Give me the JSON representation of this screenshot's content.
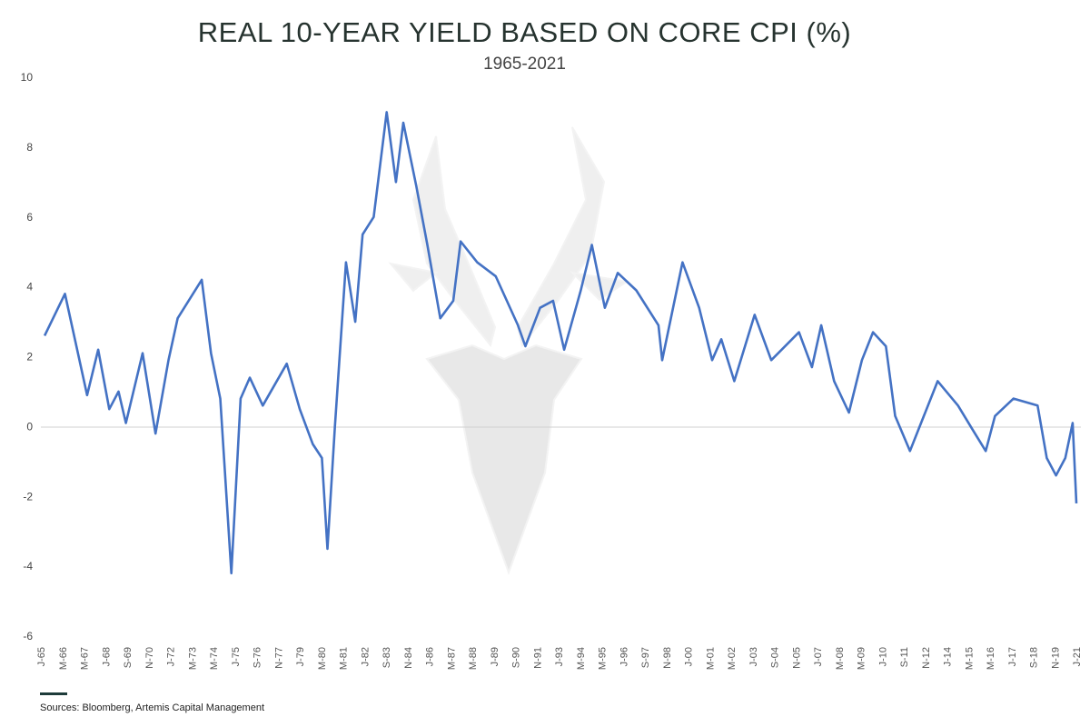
{
  "chart_data": {
    "type": "line",
    "title": "REAL 10-YEAR YIELD BASED ON CORE CPI (%)",
    "subtitle": "1965-2021",
    "xlabel": "",
    "ylabel": "",
    "ylim": [
      -6,
      10
    ],
    "xlim": [
      1965.0,
      2021.0
    ],
    "yticks": [
      "10",
      "8",
      "6",
      "4",
      "2",
      "0",
      "-2",
      "-4",
      "-6"
    ],
    "xticks": [
      "J-65",
      "M-66",
      "M-67",
      "J-68",
      "S-69",
      "N-70",
      "J-72",
      "M-73",
      "M-74",
      "J-75",
      "S-76",
      "N-77",
      "J-79",
      "M-80",
      "M-81",
      "J-82",
      "S-83",
      "N-84",
      "J-86",
      "M-87",
      "M-88",
      "J-89",
      "S-90",
      "N-91",
      "J-93",
      "M-94",
      "M-95",
      "J-96",
      "S-97",
      "N-98",
      "J-00",
      "M-01",
      "M-02",
      "J-03",
      "S-04",
      "N-05",
      "J-07",
      "M-08",
      "M-09",
      "J-10",
      "S-11",
      "N-12",
      "J-14",
      "M-15",
      "M-16",
      "J-17",
      "S-18",
      "N-19",
      "J-21"
    ],
    "grid": false,
    "series": [
      {
        "name": "Real 10-Year Yield",
        "color": "#4472c4",
        "x": [
          1965.2,
          1966.3,
          1967.5,
          1968.1,
          1968.7,
          1969.2,
          1969.6,
          1970.5,
          1971.2,
          1971.9,
          1972.4,
          1973.7,
          1974.2,
          1974.7,
          1975.3,
          1975.8,
          1976.3,
          1977.0,
          1978.3,
          1979.0,
          1979.7,
          1980.2,
          1980.5,
          1980.9,
          1981.5,
          1982.0,
          1982.4,
          1983.0,
          1983.7,
          1984.2,
          1984.6,
          1985.3,
          1985.9,
          1986.6,
          1987.3,
          1987.7,
          1988.6,
          1989.6,
          1990.8,
          1991.2,
          1992.0,
          1992.7,
          1993.3,
          1994.2,
          1994.8,
          1995.5,
          1996.2,
          1997.2,
          1998.4,
          1998.6,
          1999.7,
          2000.6,
          2001.3,
          2001.8,
          2002.5,
          2003.6,
          2004.5,
          2006.0,
          2006.7,
          2007.2,
          2007.9,
          2008.7,
          2009.4,
          2010.0,
          2010.7,
          2011.2,
          2012.0,
          2012.6,
          2013.5,
          2014.6,
          2015.4,
          2016.1,
          2016.6,
          2017.6,
          2018.9,
          2019.4,
          2019.9,
          2020.4,
          2020.8,
          2021.0
        ],
        "values": [
          2.6,
          3.8,
          0.9,
          2.2,
          0.5,
          1.0,
          0.1,
          2.1,
          -0.2,
          1.9,
          3.1,
          4.2,
          2.1,
          0.8,
          -4.2,
          0.8,
          1.4,
          0.6,
          1.8,
          0.5,
          -0.5,
          -0.9,
          -3.5,
          0.0,
          4.7,
          3.0,
          5.5,
          6.0,
          9.0,
          7.0,
          8.7,
          6.9,
          5.2,
          3.1,
          3.6,
          5.3,
          4.7,
          4.3,
          2.9,
          2.3,
          3.4,
          3.6,
          2.2,
          3.9,
          5.2,
          3.4,
          4.4,
          3.9,
          2.9,
          1.9,
          4.7,
          3.4,
          1.9,
          2.5,
          1.3,
          3.2,
          1.9,
          2.7,
          1.7,
          2.9,
          1.3,
          0.4,
          1.9,
          2.7,
          2.3,
          0.3,
          -0.7,
          0.1,
          1.3,
          0.6,
          -0.1,
          -0.7,
          0.3,
          0.8,
          0.6,
          -0.9,
          -1.4,
          -0.9,
          0.1,
          -2.2
        ]
      }
    ]
  },
  "source": "Sources: Bloomberg, Artemis Capital Management",
  "watermark": "deer-head-logo"
}
